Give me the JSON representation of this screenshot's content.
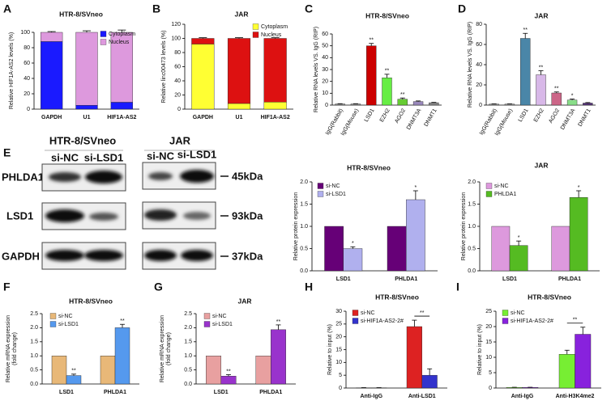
{
  "panel_labels": [
    "A",
    "B",
    "C",
    "D",
    "E",
    "F",
    "G",
    "H",
    "I"
  ],
  "blot": {
    "groups": [
      {
        "name": "HTR-8/SVneo",
        "lanes": [
          "si-NC",
          "si-LSD1"
        ]
      },
      {
        "name": "JAR",
        "lanes": [
          "si-NC",
          "si-LSD1"
        ]
      }
    ],
    "rows": [
      {
        "protein": "PHLDA1",
        "size": "45kDa"
      },
      {
        "protein": "LSD1",
        "size": "93kDa"
      },
      {
        "protein": "GAPDH",
        "size": "37kDa"
      }
    ]
  },
  "chart_data": [
    {
      "type": "bar",
      "stacked": true,
      "title": "HTR-8/SVneo",
      "y_label": [
        "Relative HIF1A-AS2 levels (%)"
      ],
      "categories": [
        "GAPDH",
        "U1",
        "HIF1A-AS2"
      ],
      "ylim": [
        0,
        100
      ],
      "yticks": [
        0,
        20,
        40,
        60,
        80,
        100
      ],
      "series": [
        {
          "name": "Cytoplasm",
          "color": "#1a1aff",
          "values": [
            88,
            5,
            9
          ],
          "errors": [
            1,
            1,
            4
          ]
        },
        {
          "name": "Nucleus",
          "color": "#dd99dd",
          "values": [
            12,
            95,
            91
          ],
          "errors": [
            1,
            2,
            3
          ]
        }
      ]
    },
    {
      "type": "bar",
      "stacked": true,
      "title": "JAR",
      "y_label": [
        "Relative linc00473 levels (%)"
      ],
      "categories": [
        "GAPDH",
        "U1",
        "HIF1A-AS2"
      ],
      "ylim": [
        0,
        120
      ],
      "yticks": [
        0,
        20,
        40,
        60,
        80,
        100,
        120
      ],
      "series": [
        {
          "name": "Cytoplasm",
          "color": "#ffff33",
          "values": [
            92,
            8,
            10
          ],
          "errors": [
            1,
            1,
            1
          ]
        },
        {
          "name": "Nucleus",
          "color": "#dd1111",
          "values": [
            8,
            92,
            90
          ],
          "errors": [
            1,
            1,
            1
          ]
        }
      ]
    },
    {
      "type": "bar",
      "title": "HTR-8/SVneo",
      "y_label": [
        "Relative RNA levels VS. IgG (RIP)"
      ],
      "categories": [
        "IgG(Rabbit)",
        "IgG(Mouse)",
        "LSD1",
        "EZH2",
        "AGO2",
        "DNMT3A",
        "DNMT1"
      ],
      "ylim": [
        0,
        60
      ],
      "yticks": [
        0,
        10,
        20,
        30,
        40,
        50,
        60
      ],
      "values": [
        1,
        1,
        50,
        23,
        5,
        3,
        2
      ],
      "errors": [
        0.2,
        0.2,
        2,
        3,
        1,
        0.5,
        0.3
      ],
      "colors": [
        "#999999",
        "#999999",
        "#cc0000",
        "#66ee44",
        "#66cc33",
        "#9988bb",
        "#888888"
      ],
      "significance": [
        null,
        null,
        "**",
        "**",
        "**",
        null,
        null
      ]
    },
    {
      "type": "bar",
      "title": "JAR",
      "y_label": [
        "Relative RNA levels VS. IgG (RIP)"
      ],
      "categories": [
        "IgG(Rabbit)",
        "IgG(Mouse)",
        "LSD1",
        "EZH2",
        "AGO2",
        "DNMT3A",
        "DNMT1"
      ],
      "ylim": [
        0,
        80
      ],
      "yticks": [
        0,
        20,
        40,
        60,
        80
      ],
      "values": [
        1,
        1,
        66,
        30,
        12,
        5,
        2
      ],
      "errors": [
        0.2,
        0.2,
        5,
        4,
        1,
        1,
        0.5
      ],
      "colors": [
        "#999999",
        "#999999",
        "#4a86a8",
        "#d8b8e8",
        "#cc6688",
        "#88dd88",
        "#553377"
      ],
      "significance": [
        null,
        null,
        "**",
        "**",
        "**",
        "*",
        null
      ]
    },
    {
      "type": "bar",
      "title": "HTR-8/SVneo",
      "y_label": [
        "Relative protein expression"
      ],
      "categories": [
        "LSD1",
        "PHLDA1"
      ],
      "ylim": [
        0,
        2
      ],
      "yticks": [
        {
          "value": 0,
          "label": "0.0"
        },
        {
          "value": 0.5,
          "label": "0.5"
        },
        {
          "value": 1,
          "label": "1.0"
        },
        {
          "value": 1.5,
          "label": "1.5"
        },
        {
          "value": 2,
          "label": "2.0"
        }
      ],
      "series": [
        {
          "name": "si-NC",
          "color": "#660077",
          "values": [
            1,
            1
          ]
        },
        {
          "name": "si-LSD1",
          "color": "#b0b0ee",
          "values": [
            0.5,
            1.6
          ],
          "errors": [
            0.04,
            0.2
          ],
          "significance": [
            "*",
            "*"
          ]
        }
      ]
    },
    {
      "type": "bar",
      "title": "JAR",
      "y_label": [
        "Relative protein expression"
      ],
      "categories": [
        "LSD1",
        "PHLDA1"
      ],
      "ylim": [
        0,
        2
      ],
      "yticks": [
        {
          "value": 0,
          "label": "0.0"
        },
        {
          "value": 0.5,
          "label": "0.5"
        },
        {
          "value": 1,
          "label": "1.0"
        },
        {
          "value": 1.5,
          "label": "1.5"
        },
        {
          "value": 2,
          "label": "2.0"
        }
      ],
      "series": [
        {
          "name": "si-NC",
          "color": "#dd99dd",
          "values": [
            1,
            1
          ]
        },
        {
          "name": "PHLDA1",
          "color": "#55bb22",
          "values": [
            0.57,
            1.65
          ],
          "errors": [
            0.1,
            0.15
          ],
          "significance": [
            "*",
            "*"
          ]
        }
      ]
    },
    {
      "type": "bar",
      "title": "HTR-8/SVneo",
      "y_label": [
        "Relative mRNA expression",
        "(fold  change)"
      ],
      "categories": [
        "LSD1",
        "PHLDA1"
      ],
      "ylim": [
        0,
        2.5
      ],
      "yticks": [
        {
          "value": 0,
          "label": "0.0"
        },
        {
          "value": 0.5,
          "label": "0.5"
        },
        {
          "value": 1,
          "label": "1.0"
        },
        {
          "value": 1.5,
          "label": "1.5"
        },
        {
          "value": 2,
          "label": "2.0"
        },
        {
          "value": 2.5,
          "label": "2.5"
        }
      ],
      "series": [
        {
          "name": "si-NC",
          "color": "#e8b878",
          "values": [
            1,
            1
          ]
        },
        {
          "name": "si-LSD1",
          "color": "#5599ee",
          "values": [
            0.3,
            2.0
          ],
          "errors": [
            0.05,
            0.12
          ],
          "significance": [
            "**",
            "**"
          ]
        }
      ]
    },
    {
      "type": "bar",
      "title": "JAR",
      "y_label": [
        "Relative mRNA expression",
        "(fold  change)"
      ],
      "categories": [
        "LSD1",
        "PHLDA1"
      ],
      "ylim": [
        0,
        2.5
      ],
      "yticks": [
        {
          "value": 0,
          "label": "0.0"
        },
        {
          "value": 0.5,
          "label": "0.5"
        },
        {
          "value": 1,
          "label": "1.0"
        },
        {
          "value": 1.5,
          "label": "1.5"
        },
        {
          "value": 2,
          "label": "2.0"
        },
        {
          "value": 2.5,
          "label": "2.5"
        }
      ],
      "series": [
        {
          "name": "si-NC",
          "color": "#e8a0a0",
          "values": [
            1,
            1
          ]
        },
        {
          "name": "si-LSD1",
          "color": "#9933cc",
          "values": [
            0.28,
            1.93
          ],
          "errors": [
            0.05,
            0.17
          ],
          "significance": [
            "**",
            "**"
          ]
        }
      ]
    },
    {
      "type": "bar",
      "bracket": true,
      "title": "HTR-8/SVneo",
      "y_label": [
        "Relative to input (%)"
      ],
      "categories": [
        "Anti-IgG",
        "Anti-LSD1"
      ],
      "ylim": [
        0,
        30
      ],
      "yticks": [
        0,
        5,
        10,
        15,
        20,
        25,
        30
      ],
      "series": [
        {
          "name": "si-NC",
          "color": "#dd2222",
          "values": [
            0.1,
            24
          ],
          "errors": [
            0.05,
            2.5
          ]
        },
        {
          "name": "si-HIF1A-AS2-2#",
          "color": "#3333cc",
          "values": [
            0.1,
            5
          ],
          "errors": [
            0.05,
            2.5
          ],
          "significance": [
            null,
            "**"
          ]
        }
      ]
    },
    {
      "type": "bar",
      "bracket": true,
      "title": "HTR-8/SVneo",
      "y_label": [
        "Relative to input (%)"
      ],
      "categories": [
        "Anti-IgG",
        "Anti-H3K4me2"
      ],
      "ylim": [
        0,
        25
      ],
      "yticks": [
        0,
        5,
        10,
        15,
        20,
        25
      ],
      "series": [
        {
          "name": "si-NC",
          "color": "#77ee33",
          "values": [
            0.2,
            11
          ],
          "errors": [
            0.05,
            1.3
          ]
        },
        {
          "name": "si-HIF1A-AS2-2#",
          "color": "#8822dd",
          "values": [
            0.2,
            17.5
          ],
          "errors": [
            0.05,
            2.3
          ],
          "significance": [
            null,
            "**"
          ]
        }
      ]
    }
  ]
}
